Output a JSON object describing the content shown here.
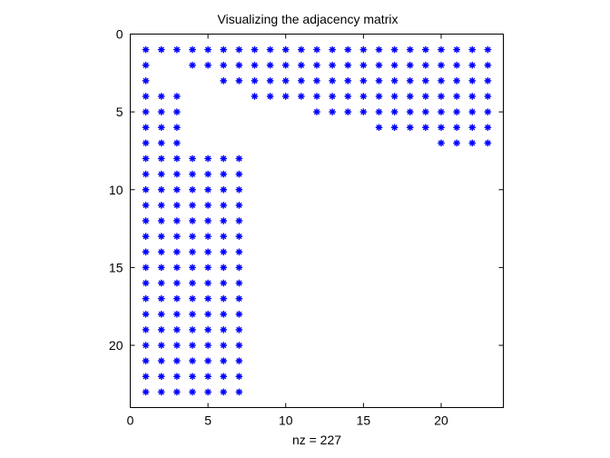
{
  "chart_data": {
    "type": "scatter",
    "title": "Visualizing the adjacency matrix",
    "xlabel": "nz = 227",
    "ylabel": "",
    "xlim": [
      0,
      24
    ],
    "ylim": [
      0,
      24
    ],
    "y_reversed": true,
    "x_ticks": [
      0,
      5,
      10,
      15,
      20
    ],
    "y_ticks": [
      0,
      5,
      10,
      15,
      20
    ],
    "marker": "*",
    "marker_color": "#0000ff",
    "grid": false,
    "legend": "none",
    "rows": [
      {
        "row": 1,
        "cols": [
          1,
          2,
          3,
          4,
          5,
          6,
          7,
          8,
          9,
          10,
          11,
          12,
          13,
          14,
          15,
          16,
          17,
          18,
          19,
          20,
          21,
          22,
          23
        ]
      },
      {
        "row": 2,
        "cols": [
          1,
          4,
          5,
          6,
          7,
          8,
          9,
          10,
          11,
          12,
          13,
          14,
          15,
          16,
          17,
          18,
          19,
          20,
          21,
          22,
          23
        ]
      },
      {
        "row": 3,
        "cols": [
          1,
          6,
          7,
          8,
          9,
          10,
          11,
          12,
          13,
          14,
          15,
          16,
          17,
          18,
          19,
          20,
          21,
          22,
          23
        ]
      },
      {
        "row": 4,
        "cols": [
          1,
          2,
          3,
          8,
          9,
          10,
          11,
          12,
          13,
          14,
          15,
          16,
          17,
          18,
          19,
          20,
          21,
          22,
          23
        ]
      },
      {
        "row": 5,
        "cols": [
          1,
          2,
          3,
          12,
          13,
          14,
          15,
          16,
          17,
          18,
          19,
          20,
          21,
          22,
          23
        ]
      },
      {
        "row": 6,
        "cols": [
          1,
          2,
          3,
          16,
          17,
          18,
          19,
          20,
          21,
          22,
          23
        ]
      },
      {
        "row": 7,
        "cols": [
          1,
          2,
          3,
          20,
          21,
          22,
          23
        ]
      },
      {
        "row": 8,
        "cols": [
          1,
          2,
          3,
          4,
          5,
          6,
          7
        ]
      },
      {
        "row": 9,
        "cols": [
          1,
          2,
          3,
          4,
          5,
          6,
          7
        ]
      },
      {
        "row": 10,
        "cols": [
          1,
          2,
          3,
          4,
          5,
          6,
          7
        ]
      },
      {
        "row": 11,
        "cols": [
          1,
          2,
          3,
          4,
          5,
          6,
          7
        ]
      },
      {
        "row": 12,
        "cols": [
          1,
          2,
          3,
          4,
          5,
          6,
          7
        ]
      },
      {
        "row": 13,
        "cols": [
          1,
          2,
          3,
          4,
          5,
          6,
          7
        ]
      },
      {
        "row": 14,
        "cols": [
          1,
          2,
          3,
          4,
          5,
          6,
          7
        ]
      },
      {
        "row": 15,
        "cols": [
          1,
          2,
          3,
          4,
          5,
          6,
          7
        ]
      },
      {
        "row": 16,
        "cols": [
          1,
          2,
          3,
          4,
          5,
          6,
          7
        ]
      },
      {
        "row": 17,
        "cols": [
          1,
          2,
          3,
          4,
          5,
          6,
          7
        ]
      },
      {
        "row": 18,
        "cols": [
          1,
          2,
          3,
          4,
          5,
          6,
          7
        ]
      },
      {
        "row": 19,
        "cols": [
          1,
          2,
          3,
          4,
          5,
          6,
          7
        ]
      },
      {
        "row": 20,
        "cols": [
          1,
          2,
          3,
          4,
          5,
          6,
          7
        ]
      },
      {
        "row": 21,
        "cols": [
          1,
          2,
          3,
          4,
          5,
          6,
          7
        ]
      },
      {
        "row": 22,
        "cols": [
          1,
          2,
          3,
          4,
          5,
          6,
          7
        ]
      },
      {
        "row": 23,
        "cols": [
          1,
          2,
          3,
          4,
          5,
          6,
          7
        ]
      }
    ]
  }
}
